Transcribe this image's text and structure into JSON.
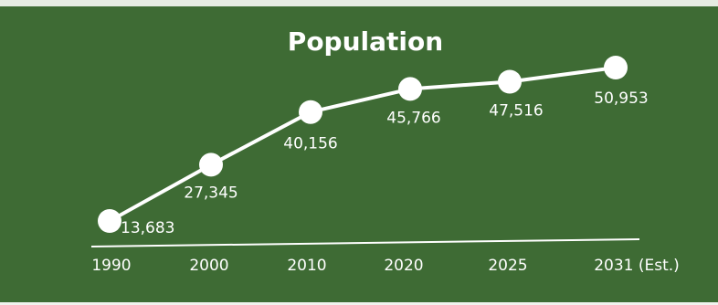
{
  "chart_data": {
    "type": "line",
    "title": "Population",
    "categories": [
      "1990",
      "2000",
      "2010",
      "2020",
      "2025",
      "2031 (Est.)"
    ],
    "series": [
      {
        "values": [
          13683,
          27345,
          40156,
          45766,
          47516,
          50953
        ],
        "value_labels": [
          "13,683",
          "27,345",
          "40,156",
          "45,766",
          "47,516",
          "50,953"
        ]
      }
    ],
    "xlabel": "",
    "ylabel": "",
    "grid": false,
    "legend": "none",
    "colors": {
      "background": "#3e6b34",
      "line": "#ffffff",
      "marker": "#ffffff",
      "text": "#ffffff"
    }
  }
}
